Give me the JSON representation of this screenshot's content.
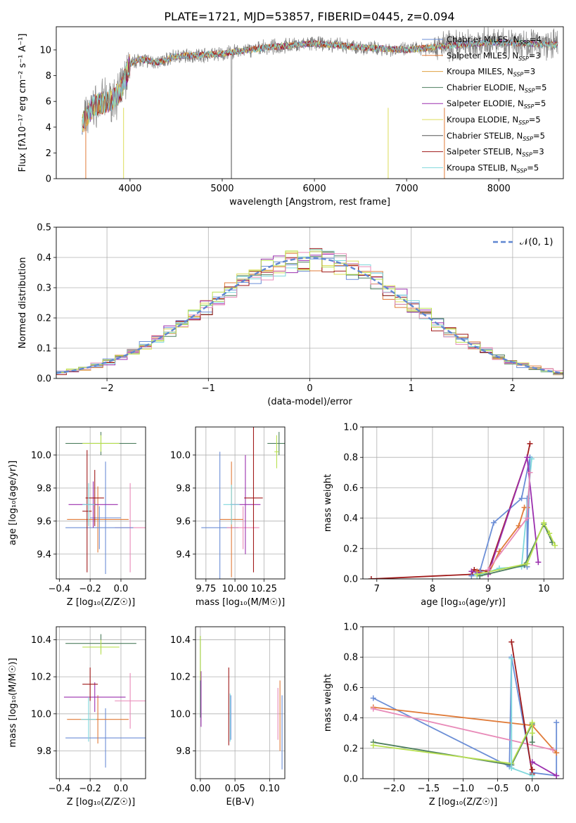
{
  "figure": {
    "title": "PLATE=1721, MJD=53857, FIBERID=0445, z=0.094"
  },
  "colors": {
    "series": [
      "#6b8ed6",
      "#e07b39",
      "#e0a040",
      "#4f7f5f",
      "#9b2fae",
      "#dcdc5a",
      "#555555",
      "#a01a1a",
      "#7fd8dc",
      "#e88ab8",
      "#b8e050"
    ],
    "data": "#808080",
    "grid": "#b0b0b0",
    "normal": "#5f86d1"
  },
  "chart_data": [
    {
      "id": "spectrum",
      "type": "line",
      "xlabel": "wavelength [Angstrom, rest frame]",
      "ylabel": "Flux [fλ10⁻¹⁷ erg cm⁻² s⁻¹ A⁻¹]",
      "xlim": [
        3200,
        8700
      ],
      "ylim": [
        0,
        11.8
      ],
      "xticks": [
        4000,
        5000,
        6000,
        7000,
        8000
      ],
      "yticks": [
        0,
        2,
        4,
        6,
        8,
        10
      ],
      "grid": false,
      "legend_loc": "upper right",
      "legend": [
        "Chabrier MILES, N_SSP=4",
        "Salpeter MILES, N_SSP=3",
        "Kroupa MILES, N_SSP=3",
        "Chabrier ELODIE, N_SSP=5",
        "Salpeter ELODIE, N_SSP=5",
        "Kroupa ELODIE, N_SSP=5",
        "Chabrier STELIB, N_SSP=5",
        "Salpeter STELIB, N_SSP=3",
        "Kroupa STELIB, N_SSP=5"
      ],
      "legend_colors": [
        0,
        1,
        2,
        3,
        4,
        5,
        6,
        7,
        8
      ],
      "continuum": {
        "x": [
          3480,
          3600,
          3700,
          3800,
          3900,
          4000,
          4100,
          4300,
          4500,
          5000,
          5500,
          6000,
          6500,
          7000,
          7400,
          8000,
          8600
        ],
        "y": [
          4.3,
          5.6,
          5.9,
          6.1,
          6.8,
          8.9,
          9.3,
          9.0,
          9.5,
          9.7,
          10.2,
          10.5,
          10.2,
          10.0,
          10.3,
          10.6,
          10.4
        ]
      }
    },
    {
      "id": "residuals",
      "type": "line",
      "xlabel": "(data-model)/error",
      "ylabel": "Normed distribution",
      "xlim": [
        -2.5,
        2.5
      ],
      "ylim": [
        0,
        0.5
      ],
      "xticks": [
        -2,
        -1,
        0,
        1,
        2
      ],
      "yticks": [
        0.0,
        0.1,
        0.2,
        0.3,
        0.4,
        0.5
      ],
      "grid": true,
      "legend": [
        "𝒩(0, 1)"
      ],
      "legend_loc": "upper right",
      "normal": {
        "mu": 0,
        "sigma": 1
      }
    },
    {
      "id": "age_vs_Z",
      "type": "scatter",
      "xlabel": "Z [log₁₀(Z/Z☉)]",
      "ylabel": "age  [log₁₀(age/yr)]",
      "xlim": [
        -0.42,
        0.16
      ],
      "ylim": [
        9.25,
        10.17
      ],
      "xticks": [
        -0.4,
        -0.2,
        0.0
      ],
      "yticks": [
        9.4,
        9.6,
        9.8,
        10.0
      ],
      "grid": true,
      "points": [
        {
          "x": -0.1,
          "y": 9.62,
          "xerr": 0.1,
          "yerr": 0.34,
          "c": 0
        },
        {
          "x": -0.15,
          "y": 9.61,
          "xerr": 0.2,
          "yerr": 0.2,
          "c": 1
        },
        {
          "x": 0.06,
          "y": 9.56,
          "xerr": 0.1,
          "yerr": 0.27,
          "c": 9
        },
        {
          "x": -0.14,
          "y": 9.56,
          "xerr": 0.22,
          "yerr": 0.13,
          "c": 0
        },
        {
          "x": -0.18,
          "y": 9.7,
          "xerr": 0.16,
          "yerr": 0.14,
          "c": 4
        },
        {
          "x": -0.17,
          "y": 9.74,
          "xerr": 0.06,
          "yerr": 0.17,
          "c": 7
        },
        {
          "x": -0.22,
          "y": 9.66,
          "xerr": 0.03,
          "yerr": 0.37,
          "c": 7
        },
        {
          "x": -0.21,
          "y": 9.7,
          "xerr": 0.04,
          "yerr": 0.13,
          "c": 8
        },
        {
          "x": -0.13,
          "y": 10.07,
          "xerr": 0.23,
          "yerr": 0.07,
          "c": 3
        },
        {
          "x": -0.13,
          "y": 10.07,
          "xerr": 0.12,
          "yerr": 0.05,
          "c": 10
        }
      ]
    },
    {
      "id": "age_vs_mass",
      "type": "scatter",
      "xlabel": "mass [log₁₀(M/M☉)]",
      "ylabel": "",
      "xlim": [
        9.66,
        10.43
      ],
      "ylim": [
        9.25,
        10.17
      ],
      "xticks": [
        9.75,
        10.0,
        10.25
      ],
      "yticks": [
        9.4,
        9.6,
        9.8,
        10.0
      ],
      "grid": true,
      "points": [
        {
          "x": 9.87,
          "y": 9.56,
          "xerr": 0.16,
          "yerr": 0.46,
          "c": 0
        },
        {
          "x": 10.07,
          "y": 9.56,
          "xerr": 0.14,
          "yerr": 0.13,
          "c": 9
        },
        {
          "x": 9.97,
          "y": 9.61,
          "xerr": 0.1,
          "yerr": 0.35,
          "c": 1
        },
        {
          "x": 10.09,
          "y": 9.7,
          "xerr": 0.13,
          "yerr": 0.3,
          "c": 4
        },
        {
          "x": 10.16,
          "y": 9.74,
          "xerr": 0.08,
          "yerr": 0.45,
          "c": 7
        },
        {
          "x": 9.97,
          "y": 9.7,
          "xerr": 0.07,
          "yerr": 0.12,
          "c": 8
        },
        {
          "x": 10.38,
          "y": 10.07,
          "xerr": 0.1,
          "yerr": 0.07,
          "c": 3
        },
        {
          "x": 10.36,
          "y": 10.02,
          "xerr": 0.02,
          "yerr": 0.1,
          "c": 10
        }
      ]
    },
    {
      "id": "weight_vs_age",
      "type": "line",
      "xlabel": "age  [log₁₀(age/yr)]",
      "ylabel": "mass weight",
      "xlim": [
        6.75,
        10.35
      ],
      "ylim": [
        0,
        1.0
      ],
      "xticks": [
        7,
        8,
        9,
        10
      ],
      "yticks": [
        0.0,
        0.2,
        0.4,
        0.6,
        0.8,
        1.0
      ],
      "grid": true,
      "series": [
        {
          "c": 7,
          "x": [
            6.9,
            8.7,
            8.75,
            9.0,
            9.7,
            9.75
          ],
          "y": [
            0.0,
            0.03,
            0.06,
            0.05,
            0.8,
            0.89
          ]
        },
        {
          "c": 0,
          "x": [
            8.7,
            8.85,
            9.1,
            9.6,
            9.75,
            9.7,
            9.7
          ],
          "y": [
            0.02,
            0.05,
            0.37,
            0.53,
            0.8,
            0.08,
            0.53
          ]
        },
        {
          "c": 1,
          "x": [
            8.8,
            9.0,
            9.2,
            9.55,
            9.65,
            9.7
          ],
          "y": [
            0.05,
            0.03,
            0.18,
            0.35,
            0.47,
            0.47
          ]
        },
        {
          "c": 4,
          "x": [
            8.7,
            9.0,
            9.7,
            9.9
          ],
          "y": [
            0.05,
            0.03,
            0.8,
            0.11
          ]
        },
        {
          "c": 8,
          "x": [
            8.8,
            9.2,
            9.6,
            9.78
          ],
          "y": [
            0.02,
            0.07,
            0.08,
            0.79
          ]
        },
        {
          "c": 3,
          "x": [
            8.85,
            9.65,
            10.0,
            10.15
          ],
          "y": [
            0.02,
            0.09,
            0.36,
            0.24
          ]
        },
        {
          "c": 10,
          "x": [
            8.8,
            9.7,
            10.0,
            10.1,
            10.2
          ],
          "y": [
            0.03,
            0.1,
            0.37,
            0.3,
            0.22
          ]
        },
        {
          "c": 9,
          "x": [
            9.0,
            9.7,
            9.75
          ],
          "y": [
            0.06,
            0.4,
            0.7
          ]
        }
      ]
    },
    {
      "id": "mass_vs_Z",
      "type": "scatter",
      "xlabel": "Z [log₁₀(Z/Z☉)]",
      "ylabel": "mass [log₁₀(M/M☉)]",
      "xlim": [
        -0.42,
        0.16
      ],
      "ylim": [
        9.65,
        10.47
      ],
      "xticks": [
        -0.4,
        -0.2,
        0.0
      ],
      "yticks": [
        9.8,
        10.0,
        10.2,
        10.4
      ],
      "grid": true,
      "points": [
        {
          "x": -0.1,
          "y": 9.87,
          "xerr": 0.26,
          "yerr": 0.16,
          "c": 0
        },
        {
          "x": -0.15,
          "y": 9.97,
          "xerr": 0.2,
          "yerr": 0.13,
          "c": 1
        },
        {
          "x": 0.06,
          "y": 10.07,
          "xerr": 0.1,
          "yerr": 0.15,
          "c": 9
        },
        {
          "x": -0.17,
          "y": 10.09,
          "xerr": 0.2,
          "yerr": 0.08,
          "c": 4
        },
        {
          "x": -0.2,
          "y": 10.16,
          "xerr": 0.05,
          "yerr": 0.09,
          "c": 7
        },
        {
          "x": -0.21,
          "y": 9.97,
          "xerr": 0.05,
          "yerr": 0.12,
          "c": 8
        },
        {
          "x": -0.13,
          "y": 10.38,
          "xerr": 0.23,
          "yerr": 0.05,
          "c": 3
        },
        {
          "x": -0.13,
          "y": 10.36,
          "xerr": 0.12,
          "yerr": 0.04,
          "c": 10
        }
      ]
    },
    {
      "id": "mass_vs_ebv",
      "type": "scatter",
      "xlabel": "E(B-V)",
      "ylabel": "",
      "xlim": [
        -0.007,
        0.122
      ],
      "ylim": [
        9.65,
        10.47
      ],
      "xticks": [
        0.0,
        0.05,
        0.1
      ],
      "yticks": [
        9.8,
        10.0,
        10.2,
        10.4
      ],
      "grid": true,
      "points": [
        {
          "x": 0.0,
          "y": 10.2,
          "yerr": 0.22,
          "c": 3
        },
        {
          "x": 0.001,
          "y": 10.08,
          "yerr": 0.15,
          "c": 4
        },
        {
          "x": 0.0,
          "y": 10.3,
          "yerr": 0.12,
          "c": 10
        },
        {
          "x": 0.041,
          "y": 10.04,
          "yerr": 0.21,
          "c": 7
        },
        {
          "x": 0.043,
          "y": 9.98,
          "yerr": 0.13,
          "c": 8
        },
        {
          "x": 0.044,
          "y": 9.98,
          "yerr": 0.12,
          "c": 0
        },
        {
          "x": 0.112,
          "y": 10.0,
          "yerr": 0.14,
          "c": 9
        },
        {
          "x": 0.115,
          "y": 9.99,
          "yerr": 0.19,
          "c": 1
        },
        {
          "x": 0.118,
          "y": 9.9,
          "yerr": 0.2,
          "c": 0
        }
      ]
    },
    {
      "id": "weight_vs_Z",
      "type": "line",
      "xlabel": "Z [log₁₀(Z/Z☉)]",
      "ylabel": "mass weight",
      "xlim": [
        -2.45,
        0.45
      ],
      "ylim": [
        0,
        1.0
      ],
      "xticks": [
        -2.0,
        -1.5,
        -1.0,
        -0.5,
        0.0
      ],
      "yticks": [
        0.0,
        0.2,
        0.4,
        0.6,
        0.8,
        1.0
      ],
      "grid": true,
      "series": [
        {
          "c": 0,
          "x": [
            -2.3,
            -0.33,
            -0.3,
            0.0,
            0.35,
            0.35
          ],
          "y": [
            0.53,
            0.08,
            0.8,
            0.04,
            0.02,
            0.37
          ]
        },
        {
          "c": 1,
          "x": [
            -2.3,
            0.0,
            0.35
          ],
          "y": [
            0.47,
            0.35,
            0.17
          ]
        },
        {
          "c": 9,
          "x": [
            -2.3,
            0.3
          ],
          "y": [
            0.46,
            0.19
          ]
        },
        {
          "c": 7,
          "x": [
            -0.3,
            0.0,
            0.0
          ],
          "y": [
            0.9,
            0.03,
            0.06
          ]
        },
        {
          "c": 4,
          "x": [
            0.0,
            0.35
          ],
          "y": [
            0.11,
            0.02
          ]
        },
        {
          "c": 3,
          "x": [
            -2.3,
            -0.3,
            0.0,
            0.0
          ],
          "y": [
            0.24,
            0.09,
            0.36,
            0.24
          ]
        },
        {
          "c": 10,
          "x": [
            -2.3,
            -0.3,
            0.0,
            0.0
          ],
          "y": [
            0.22,
            0.1,
            0.37,
            0.3
          ]
        },
        {
          "c": 8,
          "x": [
            -0.3,
            -0.3,
            0.0
          ],
          "y": [
            0.79,
            0.07,
            0.02
          ]
        }
      ]
    }
  ]
}
